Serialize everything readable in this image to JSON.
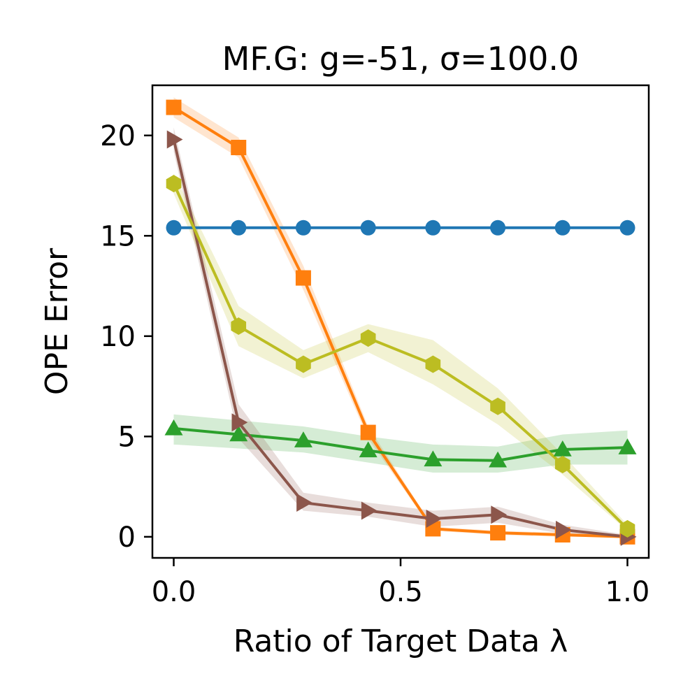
{
  "chart_data": {
    "type": "line",
    "title": "MF.G: g=-51, σ=100.0",
    "xlabel": "Ratio of Target Data λ",
    "ylabel": "OPE Error",
    "xlim": [
      -0.047,
      1.047
    ],
    "ylim": [
      -1.05,
      22.5
    ],
    "xticks": [
      0.0,
      0.5,
      1.0
    ],
    "xtick_labels": [
      "0.0",
      "0.5",
      "1.0"
    ],
    "yticks": [
      0,
      5,
      10,
      15,
      20
    ],
    "ytick_labels": [
      "0",
      "5",
      "10",
      "15",
      "20"
    ],
    "grid": false,
    "legend": "none",
    "x": [
      0.0,
      0.1429,
      0.2857,
      0.4286,
      0.5714,
      0.7143,
      0.8571,
      1.0
    ],
    "series": [
      {
        "name": "blue-circle",
        "color": "#1f77b4",
        "marker": "circle",
        "values": [
          15.4,
          15.4,
          15.4,
          15.4,
          15.4,
          15.4,
          15.4,
          15.4
        ],
        "lower": [
          15.4,
          15.4,
          15.4,
          15.4,
          15.4,
          15.4,
          15.4,
          15.4
        ],
        "upper": [
          15.4,
          15.4,
          15.4,
          15.4,
          15.4,
          15.4,
          15.4,
          15.4
        ]
      },
      {
        "name": "orange-square",
        "color": "#ff7f0e",
        "marker": "square",
        "values": [
          21.4,
          19.4,
          12.9,
          5.2,
          0.4,
          0.2,
          0.1,
          0.0
        ],
        "lower": [
          20.9,
          18.9,
          12.3,
          4.9,
          0.3,
          0.1,
          0.0,
          0.0
        ],
        "upper": [
          21.9,
          19.9,
          13.5,
          5.5,
          0.5,
          0.3,
          0.2,
          0.1
        ]
      },
      {
        "name": "green-triangle",
        "color": "#2ca02c",
        "marker": "triangle-up",
        "values": [
          5.4,
          5.1,
          4.8,
          4.3,
          3.85,
          3.8,
          4.35,
          4.45
        ],
        "lower": [
          4.6,
          4.4,
          4.2,
          3.7,
          3.2,
          3.2,
          3.6,
          3.6
        ],
        "upper": [
          6.1,
          5.8,
          5.5,
          5.0,
          4.6,
          4.5,
          5.1,
          5.3
        ]
      },
      {
        "name": "brown-triangle-right",
        "color": "#8c564b",
        "marker": "triangle-right",
        "values": [
          19.8,
          5.7,
          1.7,
          1.3,
          0.9,
          1.1,
          0.35,
          0.0
        ],
        "lower": [
          19.2,
          4.9,
          1.3,
          1.0,
          0.5,
          0.7,
          0.15,
          0.0
        ],
        "upper": [
          20.4,
          6.6,
          2.2,
          1.7,
          1.3,
          1.5,
          0.6,
          0.1
        ]
      },
      {
        "name": "olive-hexagon",
        "color": "#bcbd22",
        "marker": "hexagon",
        "values": [
          17.6,
          10.5,
          8.6,
          9.9,
          8.6,
          6.5,
          3.6,
          0.4
        ],
        "lower": [
          17.1,
          9.5,
          7.9,
          9.2,
          7.6,
          5.6,
          3.1,
          0.3
        ],
        "upper": [
          18.1,
          11.5,
          9.3,
          10.6,
          9.8,
          7.4,
          4.1,
          0.6
        ]
      }
    ]
  }
}
